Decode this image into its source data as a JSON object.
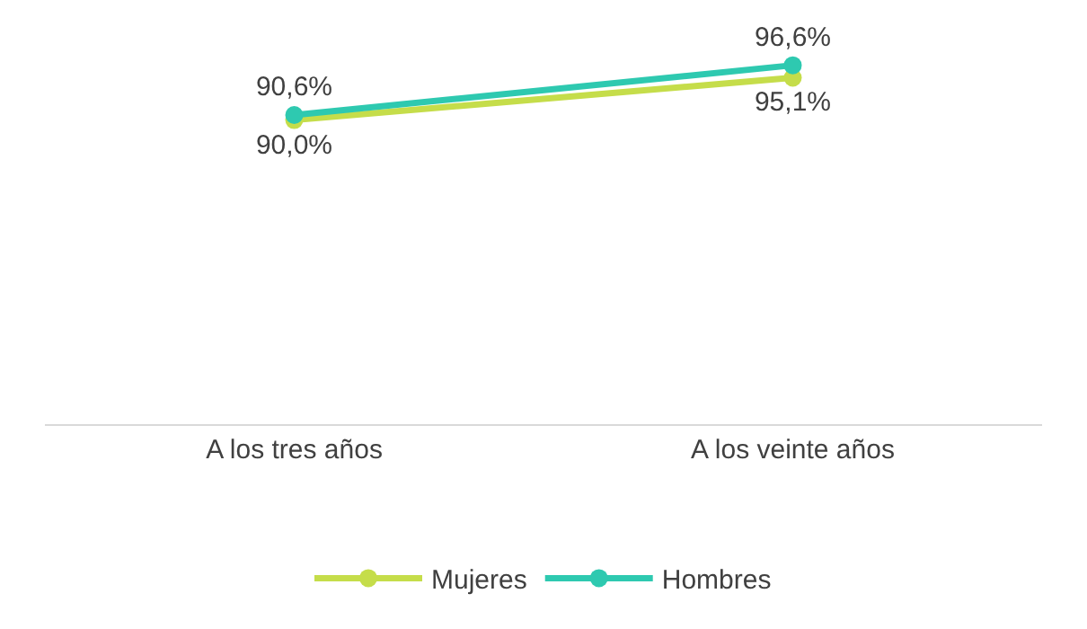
{
  "chart_data": {
    "type": "line",
    "categories": [
      "A los tres años",
      "A los veinte años"
    ],
    "series": [
      {
        "name": "Mujeres",
        "color": "#c5dd4a",
        "values": [
          90.0,
          95.1
        ],
        "value_labels": [
          "90,0%",
          "95,1%"
        ]
      },
      {
        "name": "Hombres",
        "color": "#2ec9b0",
        "values": [
          90.6,
          96.6
        ],
        "value_labels": [
          "90,6%",
          "96,6%"
        ]
      }
    ],
    "marker": "circle",
    "line_style": "solid",
    "legend": "bottom"
  }
}
